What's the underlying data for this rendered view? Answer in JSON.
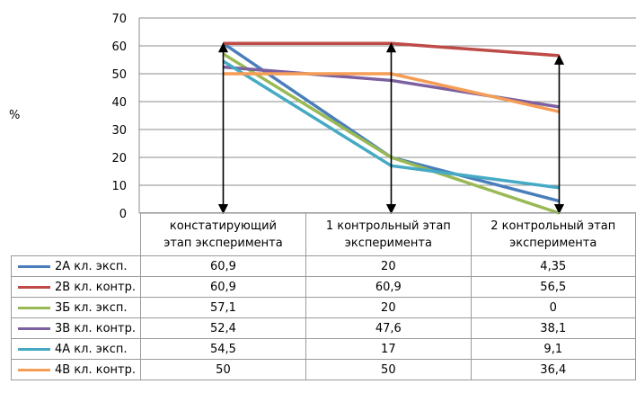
{
  "chart_data": {
    "type": "line",
    "ylabel": "%",
    "ylim": [
      0,
      70
    ],
    "yticks": [
      0,
      10,
      20,
      30,
      40,
      50,
      60,
      70
    ],
    "grid": true,
    "legend": "table-left",
    "categories": [
      "констатирующий этап эксперимента",
      "1 контрольный этап эксперимента",
      "2 контрольный этап эксперимента"
    ],
    "category_lines": [
      [
        "констатирующий",
        "этап эксперимента"
      ],
      [
        "1 контрольный этап",
        "эксперимента"
      ],
      [
        "2 контрольный этап",
        "эксперимента"
      ]
    ],
    "series": [
      {
        "name": "2А кл. эксп.",
        "color": "#4a7ebb",
        "values": [
          60.9,
          20,
          4.35
        ],
        "labels": [
          "60,9",
          "20",
          "4,35"
        ]
      },
      {
        "name": "2В кл. контр.",
        "color": "#be4b48",
        "values": [
          60.9,
          60.9,
          56.5
        ],
        "labels": [
          "60,9",
          "60,9",
          "56,5"
        ]
      },
      {
        "name": "3Б кл. эксп.",
        "color": "#98b954",
        "values": [
          57.1,
          20,
          0
        ],
        "labels": [
          "57,1",
          "20",
          "0"
        ]
      },
      {
        "name": "3В кл. контр.",
        "color": "#7d60a0",
        "values": [
          52.4,
          47.6,
          38.1
        ],
        "labels": [
          "52,4",
          "47,6",
          "38,1"
        ]
      },
      {
        "name": "4А кл. эксп.",
        "color": "#46aac5",
        "values": [
          54.5,
          17,
          9.1
        ],
        "labels": [
          "54,5",
          "17",
          "9,1"
        ]
      },
      {
        "name": "4В кл. контр.",
        "color": "#f59d56",
        "values": [
          50,
          50,
          36.4
        ],
        "labels": [
          "50",
          "50",
          "36,4"
        ]
      }
    ],
    "arrows": [
      {
        "category": 0,
        "from": 0,
        "to": 60.9
      },
      {
        "category": 1,
        "from": 0,
        "to": 60.9
      },
      {
        "category": 2,
        "from": 0,
        "to": 56.5
      }
    ]
  }
}
